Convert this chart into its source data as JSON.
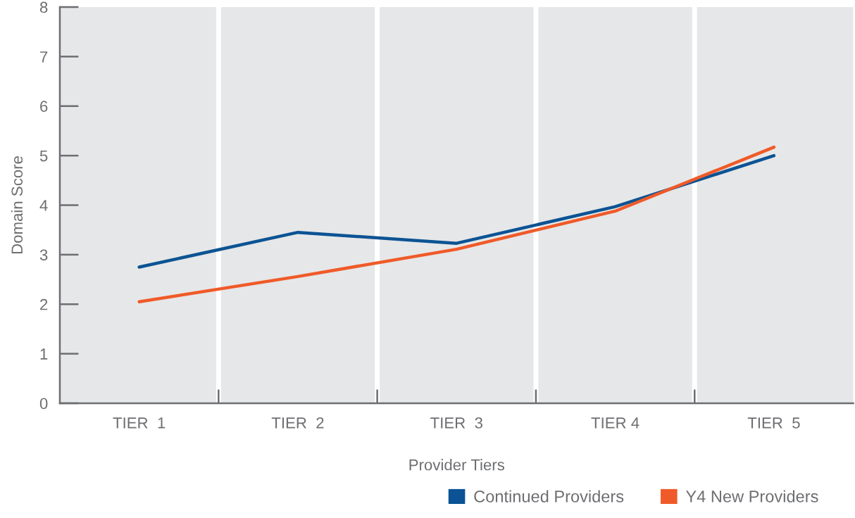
{
  "chart_data": {
    "type": "line",
    "xlabel": "Provider Tiers",
    "ylabel": "Domain Score",
    "categories": [
      "TIER  1",
      "TIER  2",
      "TIER  3",
      "TIER 4",
      "TIER  5"
    ],
    "series": [
      {
        "name": "Continued Providers",
        "color": "#0b5394",
        "values": [
          2.75,
          3.45,
          3.23,
          3.97,
          5.0
        ]
      },
      {
        "name": "Y4 New Providers",
        "color": "#f05a28",
        "values": [
          2.05,
          2.56,
          3.11,
          3.88,
          5.17
        ]
      }
    ],
    "ylim": [
      0,
      8
    ],
    "yticks": [
      0,
      1,
      2,
      3,
      4,
      5,
      6,
      7,
      8
    ],
    "grid": "x",
    "legend": "bottom right"
  }
}
